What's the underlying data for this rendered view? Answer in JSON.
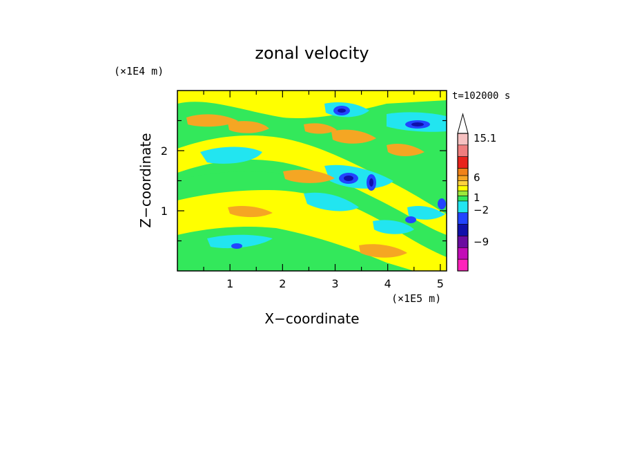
{
  "chart_data": {
    "type": "heatmap",
    "title": "zonal velocity",
    "xlabel": "X−coordinate",
    "ylabel": "Z−coordinate",
    "x_unit": "(×1E5 m)",
    "y_unit": "(×1E4 m)",
    "time_label": "t=102000 s",
    "x_ticks": [
      "1",
      "2",
      "3",
      "4",
      "5"
    ],
    "x_tick_values": [
      1,
      2,
      3,
      4,
      5
    ],
    "y_ticks": [
      "1",
      "2"
    ],
    "y_tick_values": [
      1,
      2
    ],
    "xlim": [
      0,
      5.12
    ],
    "ylim": [
      0,
      3.0
    ],
    "colorbar": {
      "labels": [
        "15.1",
        "6",
        "1",
        "−2",
        "−9"
      ],
      "colors": [
        "#ffffff",
        "#f6c1c1",
        "#ef7e7e",
        "#e8231c",
        "#f08218",
        "#f5a623",
        "#ffd23c",
        "#ffff00",
        "#9be83c",
        "#33e85b",
        "#22e5f0",
        "#2244ff",
        "#1010aa",
        "#6a0ca0",
        "#c30cb7",
        "#ff22bb"
      ]
    },
    "contour_colors": {
      "strong_positive": "#f5a623",
      "positive": "#ffd23c",
      "weak_positive": "#ffff00",
      "neutral": "#33e85b",
      "weak_negative": "#22e5f0",
      "negative": "#2244ff",
      "strong_negative": "#1010aa"
    }
  }
}
